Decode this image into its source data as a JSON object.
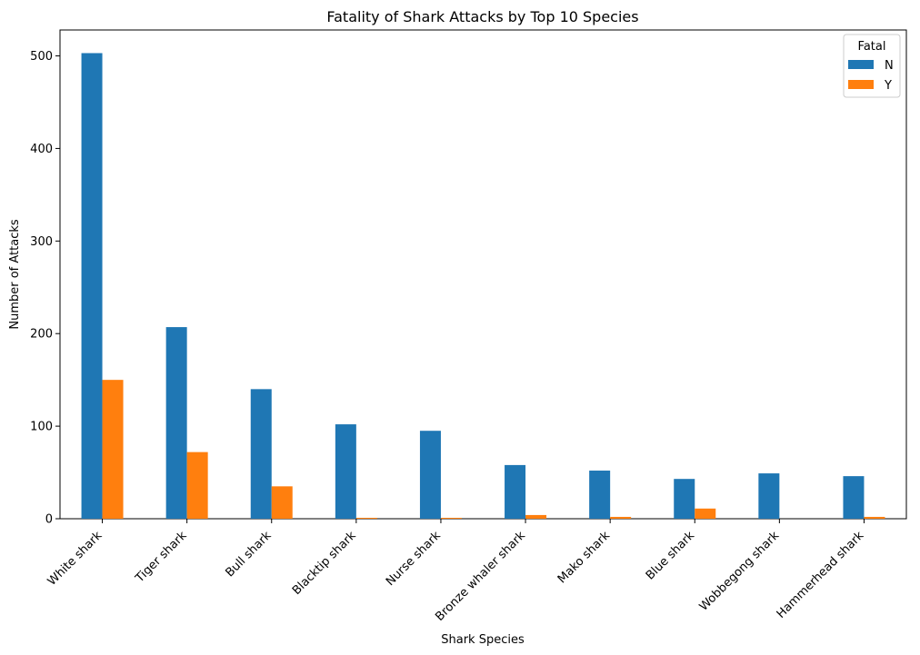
{
  "chart_data": {
    "type": "bar",
    "title": "Fatality of Shark Attacks by Top 10 Species",
    "xlabel": "Shark Species",
    "ylabel": "Number of Attacks",
    "categories": [
      "White shark",
      "Tiger shark",
      "Bull shark",
      "Blacktip shark",
      "Nurse shark",
      "Bronze whaler shark",
      "Mako shark",
      "Blue shark",
      "Wobbegong shark",
      "Hammerhead shark"
    ],
    "series": [
      {
        "name": "N",
        "color": "#1f77b4",
        "values": [
          503,
          207,
          140,
          102,
          95,
          58,
          52,
          43,
          49,
          46
        ]
      },
      {
        "name": "Y",
        "color": "#ff7f0e",
        "values": [
          150,
          72,
          35,
          1,
          1,
          4,
          2,
          11,
          0,
          2
        ]
      }
    ],
    "ylim": [
      0,
      528
    ],
    "yticks": [
      0,
      100,
      200,
      300,
      400,
      500
    ],
    "grid": false,
    "legend": {
      "title": "Fatal",
      "placement": "top-right"
    }
  }
}
